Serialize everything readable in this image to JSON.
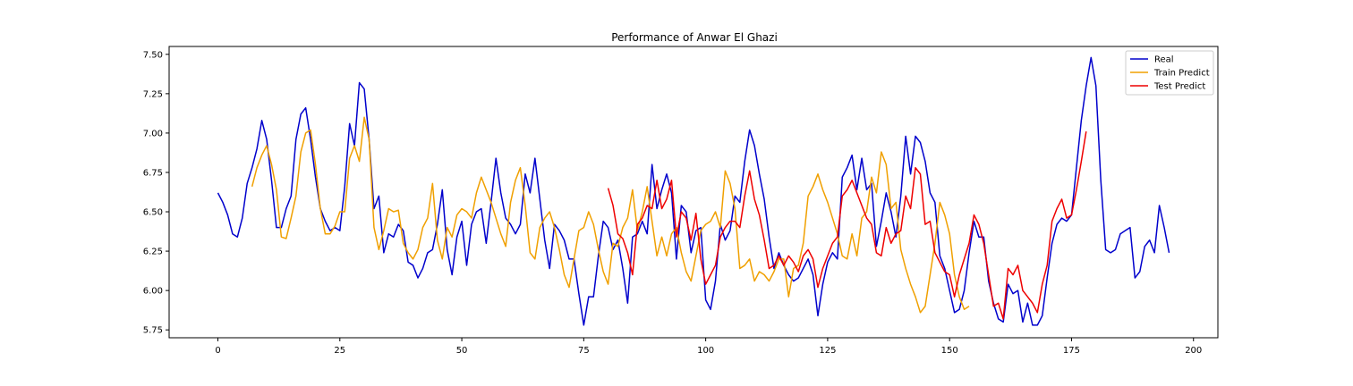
{
  "chart_data": {
    "type": "line",
    "title": "Performance of Anwar El Ghazi",
    "xlabel": "",
    "ylabel": "",
    "xlim": [
      -10,
      205
    ],
    "ylim": [
      5.7,
      7.55
    ],
    "xticks": [
      0,
      25,
      50,
      75,
      100,
      125,
      150,
      175,
      200
    ],
    "yticks": [
      5.75,
      6.0,
      6.25,
      6.5,
      6.75,
      7.0,
      7.25,
      7.5
    ],
    "xtick_labels": [
      "0",
      "25",
      "50",
      "75",
      "100",
      "125",
      "150",
      "175",
      "200"
    ],
    "ytick_labels": [
      "5.75",
      "6.00",
      "6.25",
      "6.50",
      "6.75",
      "7.00",
      "7.25",
      "7.50"
    ],
    "grid": false,
    "legend_position": "top-right",
    "series": [
      {
        "name": "Real",
        "color": "#0000cc",
        "x_start": 0,
        "values": [
          6.62,
          6.56,
          6.48,
          6.36,
          6.34,
          6.46,
          6.68,
          6.78,
          6.9,
          7.08,
          6.96,
          6.7,
          6.4,
          6.4,
          6.52,
          6.6,
          6.96,
          7.12,
          7.16,
          6.96,
          6.72,
          6.52,
          6.44,
          6.38,
          6.4,
          6.38,
          6.66,
          7.06,
          6.92,
          7.32,
          7.28,
          6.96,
          6.52,
          6.6,
          6.24,
          6.36,
          6.34,
          6.42,
          6.38,
          6.18,
          6.16,
          6.08,
          6.14,
          6.24,
          6.26,
          6.42,
          6.64,
          6.26,
          6.1,
          6.34,
          6.44,
          6.16,
          6.42,
          6.5,
          6.52,
          6.3,
          6.56,
          6.84,
          6.62,
          6.46,
          6.42,
          6.36,
          6.42,
          6.74,
          6.62,
          6.84,
          6.58,
          6.32,
          6.14,
          6.42,
          6.38,
          6.32,
          6.2,
          6.2,
          5.98,
          5.78,
          5.96,
          5.96,
          6.22,
          6.44,
          6.4,
          6.26,
          6.32,
          6.14,
          5.92,
          6.34,
          6.36,
          6.44,
          6.36,
          6.8,
          6.52,
          6.64,
          6.74,
          6.62,
          6.2,
          6.54,
          6.5,
          6.24,
          6.38,
          6.4,
          5.94,
          5.88,
          6.06,
          6.42,
          6.32,
          6.38,
          6.6,
          6.56,
          6.82,
          7.02,
          6.92,
          6.74,
          6.58,
          6.34,
          6.14,
          6.24,
          6.16,
          6.1,
          6.06,
          6.08,
          6.14,
          6.2,
          6.1,
          5.84,
          6.04,
          6.18,
          6.24,
          6.2,
          6.72,
          6.78,
          6.86,
          6.64,
          6.84,
          6.64,
          6.68,
          6.28,
          6.44,
          6.62,
          6.5,
          6.34,
          6.6,
          6.98,
          6.74,
          6.98,
          6.94,
          6.82,
          6.62,
          6.56,
          6.22,
          6.14,
          6.0,
          5.86,
          5.88,
          6.0,
          6.24,
          6.44,
          6.34,
          6.34,
          6.06,
          5.92,
          5.82,
          5.8,
          6.04,
          5.98,
          6.0,
          5.8,
          5.92,
          5.78,
          5.78,
          5.84,
          6.08,
          6.3,
          6.42,
          6.46,
          6.44,
          6.48,
          6.78,
          7.08,
          7.3,
          7.48,
          7.3,
          6.7,
          6.26,
          6.24,
          6.26,
          6.36,
          6.38,
          6.4,
          6.08,
          6.12,
          6.28,
          6.32,
          6.24,
          6.54,
          6.4,
          6.24
        ]
      },
      {
        "name": "Train Predict",
        "color": "#f0a000",
        "x_start": 7,
        "values": [
          6.66,
          6.78,
          6.86,
          6.92,
          6.8,
          6.64,
          6.34,
          6.33,
          6.46,
          6.6,
          6.88,
          7.0,
          7.02,
          6.8,
          6.52,
          6.36,
          6.36,
          6.41,
          6.5,
          6.5,
          6.84,
          6.92,
          6.82,
          7.1,
          6.96,
          6.4,
          6.26,
          6.38,
          6.52,
          6.5,
          6.51,
          6.3,
          6.24,
          6.2,
          6.26,
          6.4,
          6.46,
          6.68,
          6.32,
          6.2,
          6.4,
          6.34,
          6.48,
          6.52,
          6.5,
          6.46,
          6.62,
          6.72,
          6.64,
          6.56,
          6.46,
          6.36,
          6.28,
          6.56,
          6.7,
          6.78,
          6.54,
          6.24,
          6.2,
          6.4,
          6.46,
          6.5,
          6.4,
          6.26,
          6.1,
          6.02,
          6.2,
          6.38,
          6.4,
          6.5,
          6.42,
          6.26,
          6.12,
          6.04,
          6.3,
          6.28,
          6.4,
          6.46,
          6.64,
          6.38,
          6.5,
          6.66,
          6.44,
          6.22,
          6.34,
          6.22,
          6.36,
          6.4,
          6.24,
          6.12,
          6.06,
          6.22,
          6.38,
          6.42,
          6.44,
          6.5,
          6.4,
          6.76,
          6.68,
          6.52,
          6.14,
          6.16,
          6.2,
          6.06,
          6.12,
          6.1,
          6.06,
          6.12,
          6.2,
          6.2,
          5.96,
          6.14,
          6.16,
          6.3,
          6.6,
          6.66,
          6.74,
          6.64,
          6.56,
          6.46,
          6.36,
          6.22,
          6.2,
          6.36,
          6.22,
          6.46,
          6.5,
          6.72,
          6.62,
          6.88,
          6.8,
          6.52,
          6.56,
          6.26,
          6.14,
          6.04,
          5.96,
          5.86,
          5.9,
          6.1,
          6.3,
          6.56,
          6.48,
          6.36,
          6.1,
          5.96,
          5.88,
          5.9
        ]
      },
      {
        "name": "Test Predict",
        "color": "#ee0000",
        "x_start": 80,
        "values": [
          6.65,
          6.54,
          6.36,
          6.33,
          6.24,
          6.1,
          6.42,
          6.46,
          6.54,
          6.52,
          6.7,
          6.52,
          6.58,
          6.7,
          6.34,
          6.5,
          6.46,
          6.32,
          6.49,
          6.2,
          6.04,
          6.1,
          6.16,
          6.34,
          6.4,
          6.44,
          6.44,
          6.4,
          6.6,
          6.76,
          6.58,
          6.48,
          6.32,
          6.14,
          6.16,
          6.22,
          6.16,
          6.22,
          6.18,
          6.12,
          6.22,
          6.26,
          6.2,
          6.02,
          6.14,
          6.22,
          6.3,
          6.34,
          6.6,
          6.64,
          6.7,
          6.62,
          6.54,
          6.46,
          6.42,
          6.24,
          6.22,
          6.4,
          6.3,
          6.36,
          6.38,
          6.6,
          6.52,
          6.78,
          6.74,
          6.42,
          6.44,
          6.24,
          6.18,
          6.12,
          6.1,
          5.96,
          6.1,
          6.2,
          6.3,
          6.48,
          6.42,
          6.3,
          6.1,
          5.9,
          5.92,
          5.82,
          6.14,
          6.1,
          6.16,
          6.0,
          5.96,
          5.92,
          5.86,
          6.04,
          6.16,
          6.44,
          6.52,
          6.58,
          6.46,
          6.48,
          6.64,
          6.82,
          7.01
        ]
      }
    ]
  }
}
